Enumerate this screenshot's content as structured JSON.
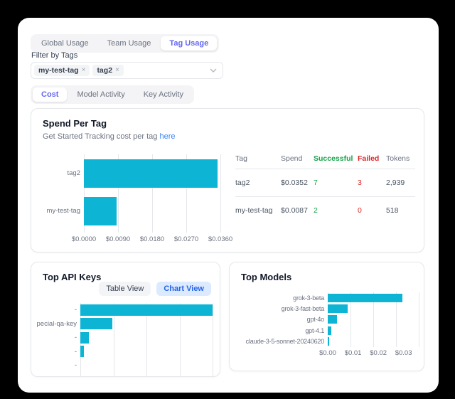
{
  "colors": {
    "bar": "#0db4d4",
    "green": "#16a34a",
    "red": "#dc2626",
    "link": "#3b82f6",
    "active_tab": "#6366f1",
    "chart_view_accent": "#2563eb"
  },
  "icons": {
    "remove": "×",
    "chevron_down": "chevron-down"
  },
  "tabs_primary": {
    "items": [
      {
        "label": "Global Usage",
        "active": false
      },
      {
        "label": "Team Usage",
        "active": false
      },
      {
        "label": "Tag Usage",
        "active": true
      }
    ]
  },
  "filter": {
    "label": "Filter by Tags",
    "chips": [
      {
        "label": "my-test-tag"
      },
      {
        "label": "tag2"
      }
    ]
  },
  "tabs_secondary": {
    "items": [
      {
        "label": "Cost",
        "active": true
      },
      {
        "label": "Model Activity",
        "active": false
      },
      {
        "label": "Key Activity",
        "active": false
      }
    ]
  },
  "spend_card": {
    "title": "Spend Per Tag",
    "subtitle_prefix": "Get Started Tracking cost per tag ",
    "subtitle_link": "here",
    "table": {
      "headers": [
        "Tag",
        "Spend",
        "Successful",
        "Failed",
        "Tokens"
      ],
      "header_accents": [
        null,
        null,
        "green",
        "red",
        null
      ],
      "rows": [
        {
          "tag": "tag2",
          "spend": "$0.0352",
          "successful": "7",
          "failed": "3",
          "tokens": "2,939"
        },
        {
          "tag": "my-test-tag",
          "spend": "$0.0087",
          "successful": "2",
          "failed": "0",
          "tokens": "518"
        }
      ]
    }
  },
  "top_api_keys_card": {
    "title": "Top API Keys",
    "table_view_label": "Table View",
    "chart_view_label": "Chart View"
  },
  "top_models_card": {
    "title": "Top Models"
  },
  "chart_data": [
    {
      "id": "spend_per_tag",
      "type": "bar",
      "orientation": "horizontal",
      "title": "Spend Per Tag",
      "categories": [
        "tag2",
        "my-test-tag"
      ],
      "values": [
        0.0352,
        0.0087
      ],
      "xlim": [
        0,
        0.036
      ],
      "ticks": [
        "$0.0000",
        "$0.0090",
        "$0.0180",
        "$0.0270",
        "$0.0360"
      ],
      "tick_pct": [
        0,
        25,
        50,
        75,
        100
      ],
      "grid_pct": [
        0,
        25,
        50,
        75,
        100
      ],
      "grid": true,
      "xlabel": "",
      "ylabel": ""
    },
    {
      "id": "top_api_keys",
      "type": "bar",
      "orientation": "horizontal",
      "title": "Top API Keys",
      "categories": [
        "-",
        "pecial-qa-key",
        "-",
        "-",
        "-"
      ],
      "values": [
        0.0295,
        0.0072,
        0.0019,
        0.0008,
        0
      ],
      "xlim": [
        0,
        0.0295
      ],
      "ticks": [],
      "tick_pct": [],
      "grid_pct": [
        0,
        25,
        50,
        75,
        100
      ],
      "grid": true,
      "note": "x axis clipped by card edge",
      "xlabel": "",
      "ylabel": ""
    },
    {
      "id": "top_models",
      "type": "bar",
      "orientation": "horizontal",
      "title": "Top Models",
      "categories": [
        "grok-3-beta",
        "grok-3-fast-beta",
        "gpt-4o",
        "gpt-4.1",
        "claude-3-5-sonnet-20240620"
      ],
      "values": [
        0.0295,
        0.008,
        0.0037,
        0.0015,
        0.0007
      ],
      "xlim": [
        0,
        0.036
      ],
      "ticks": [
        "$0.00",
        "$0.01",
        "$0.02",
        "$0.03"
      ],
      "tick_pct": [
        0,
        27.8,
        55.6,
        83.3
      ],
      "grid_pct": [
        0,
        25,
        50,
        75,
        100
      ],
      "grid": true,
      "xlabel": "",
      "ylabel": ""
    }
  ]
}
